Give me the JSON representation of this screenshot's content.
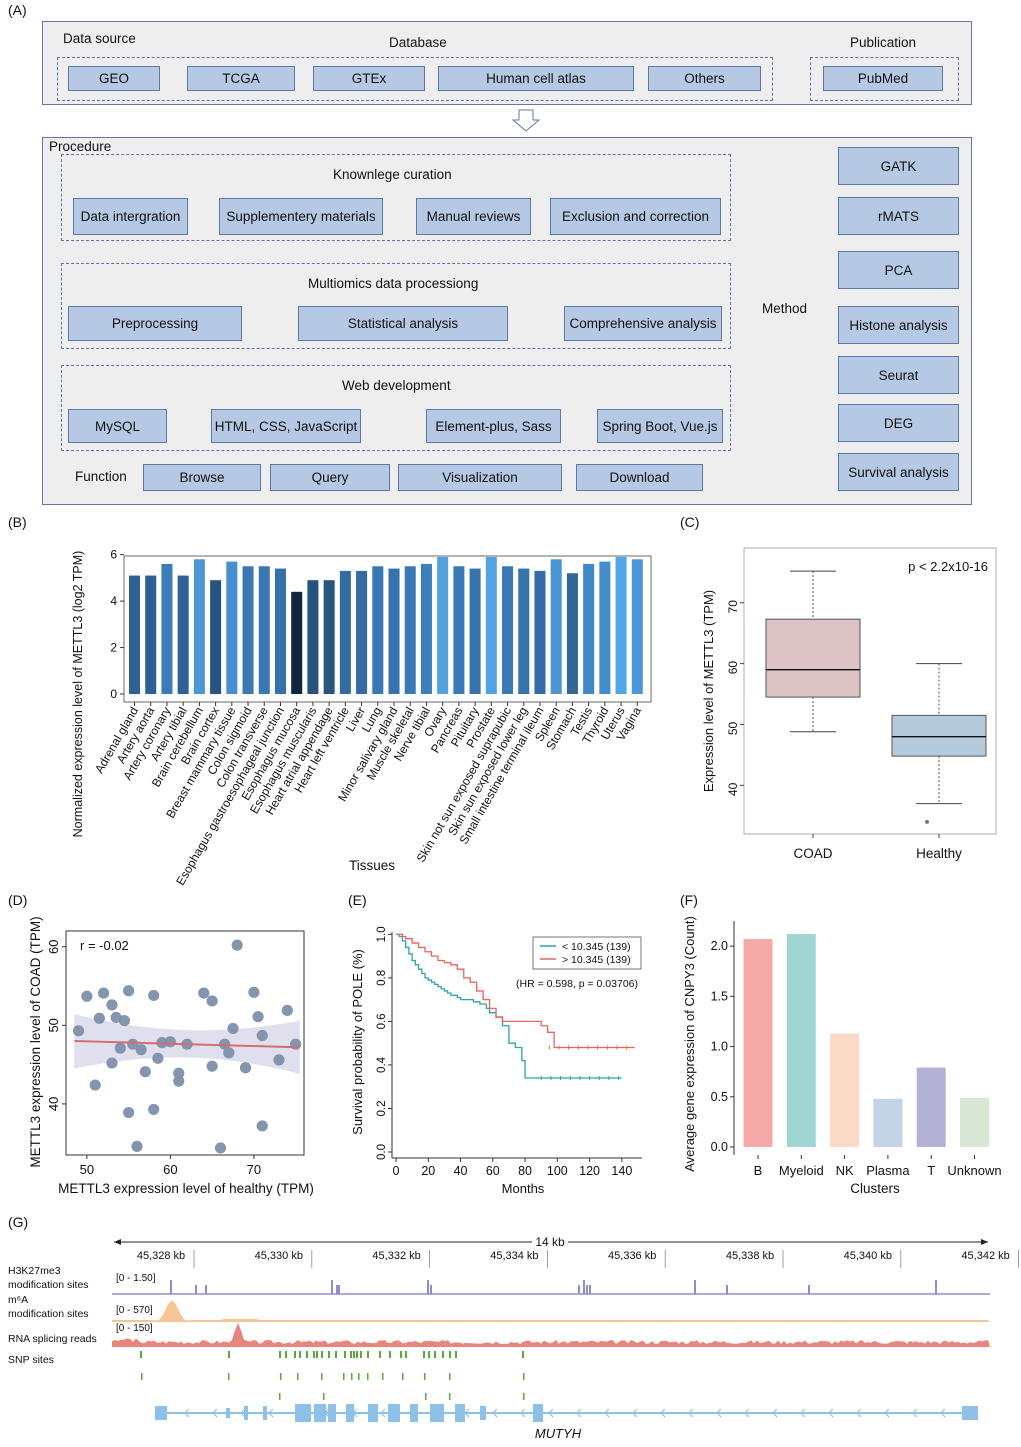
{
  "panel_labels": {
    "A": "(A)",
    "B": "(B)",
    "C": "(C)",
    "D": "(D)",
    "E": "(E)",
    "F": "(F)",
    "G": "(G)"
  },
  "workflow": {
    "data_source_label": "Data source",
    "database_label": "Database",
    "publication_label": "Publication",
    "databases": [
      "GEO",
      "TCGA",
      "GTEx",
      "Human cell atlas",
      "Others"
    ],
    "publications": [
      "PubMed"
    ],
    "procedure_label": "Procedure",
    "curation": {
      "title": "Knownlege curation",
      "steps": [
        "Data intergration",
        "Supplementery materials",
        "Manual reviews",
        "Exclusion and correction"
      ]
    },
    "multiomics": {
      "title": "Multiomics data processiong",
      "steps": [
        "Preprocessing",
        "Statistical analysis",
        "Comprehensive analysis"
      ]
    },
    "web": {
      "title": "Web development",
      "items": [
        "MySQL",
        "HTML, CSS, JavaScript",
        "Element-plus, Sass",
        "Spring Boot, Vue.js"
      ]
    },
    "function_label": "Function",
    "functions": [
      "Browse",
      "Query",
      "Visualization",
      "Download"
    ],
    "method_label": "Method",
    "methods": [
      "GATK",
      "rMATS",
      "PCA",
      "Histone analysis",
      "Seurat",
      "DEG",
      "Survival analysis"
    ]
  },
  "chart_data": [
    {
      "id": "B",
      "type": "bar",
      "ylabel": "Normalized expression level of METTL3 (log2 TPM)",
      "xlabel": "Tissues",
      "ylim": [
        0,
        6.2
      ],
      "yticks": [
        0,
        2,
        4,
        6
      ],
      "categories": [
        "Adrenal gland",
        "Artery aorta",
        "Artery coronary",
        "Artery tibial",
        "Brain cerebellum",
        "Brain cortex",
        "Breast mammary tissue",
        "Colon sigmoid",
        "Colon transverse",
        "Esophagus gastroesophageal junction",
        "Esophagus mucosa",
        "Esophagus muscularis",
        "Heart atrial appendage",
        "Heart left ventricle",
        "Liver",
        "Lung",
        "Minor salivary gland",
        "Muscle skeletal",
        "Nerve tibial",
        "Ovary",
        "Pancreas",
        "Pituitary",
        "Prostate",
        "Skin not sun exposed suprapubic",
        "Skin sun exposed lower leg",
        "Small intestine terminal ileum",
        "Spleen",
        "Stomach",
        "Testis",
        "Thyroid",
        "Uterus",
        "Vagina"
      ],
      "values": [
        5.1,
        5.1,
        5.6,
        5.1,
        5.8,
        4.9,
        5.7,
        5.5,
        5.5,
        5.4,
        4.4,
        4.9,
        4.9,
        5.3,
        5.3,
        5.5,
        5.4,
        5.5,
        5.6,
        5.9,
        5.5,
        5.4,
        5.9,
        5.5,
        5.4,
        5.3,
        5.8,
        5.2,
        5.6,
        5.7,
        5.9,
        5.8
      ],
      "colors": [
        "#2e6294",
        "#2d6193",
        "#3b7bb9",
        "#2e6294",
        "#4b96d4",
        "#26557f",
        "#4690cf",
        "#3a77b4",
        "#3a78b5",
        "#3670aa",
        "#11263b",
        "#26537e",
        "#27567f",
        "#336ba3",
        "#346ca4",
        "#3a78b4",
        "#3773ad",
        "#3a79b6",
        "#3d7ebd",
        "#52a2e0",
        "#3b7ab7",
        "#3873ad",
        "#53a3e2",
        "#3a79b6",
        "#3672ab",
        "#346da5",
        "#4a94d3",
        "#316799",
        "#4188c6",
        "#448dcc",
        "#55a6e5",
        "#4c97d6"
      ]
    },
    {
      "id": "C",
      "type": "box",
      "ylabel": "Expression level of METTL3 (TPM)",
      "categories": [
        "COAD",
        "Healthy"
      ],
      "yticks": [
        40,
        50,
        60,
        70
      ],
      "ylim": [
        32,
        79
      ],
      "annotation": "p < 2.2x10-16",
      "boxes": [
        {
          "name": "COAD",
          "min": 48.8,
          "q1": 54.5,
          "median": 59,
          "q3": 67.3,
          "max": 75.2,
          "color": "#dcc3c6"
        },
        {
          "name": "Healthy",
          "min": 37,
          "q1": 44.8,
          "median": 48,
          "q3": 51.5,
          "max": 60,
          "outliers": [
            34
          ],
          "color": "#b5cbdc"
        }
      ]
    },
    {
      "id": "D",
      "type": "scatter",
      "xlabel": "METTL3 expression level of healthy (TPM)",
      "ylabel": "METTL3 expression level of COAD (TPM)",
      "annotation": "r = -0.02",
      "xticks": [
        50,
        60,
        70
      ],
      "yticks": [
        40,
        50,
        60
      ],
      "xlim": [
        47.5,
        76
      ],
      "ylim": [
        33.5,
        62
      ],
      "x": [
        49,
        50,
        51,
        51.5,
        52,
        53,
        53,
        53.5,
        54,
        54.5,
        55,
        55,
        55.5,
        56,
        56.5,
        57,
        58,
        58,
        58.5,
        59,
        60,
        61,
        61,
        62,
        64,
        65,
        65,
        66,
        66.5,
        67,
        67.5,
        68,
        69,
        70,
        70.5,
        71,
        71,
        73,
        74,
        75
      ],
      "y": [
        49.3,
        53.7,
        42.4,
        50.9,
        54.1,
        52.6,
        45.2,
        51.0,
        47.1,
        50.6,
        54.4,
        38.9,
        47.6,
        34.6,
        46.9,
        44.1,
        53.8,
        39.3,
        45.8,
        47.8,
        47.9,
        43.9,
        42.9,
        47.6,
        54.1,
        53.1,
        44.8,
        34.4,
        47.6,
        46.5,
        49.6,
        60.2,
        44.6,
        54.2,
        51.1,
        37.2,
        48.7,
        45.6,
        51.9,
        47.6
      ],
      "fit": {
        "x0": 48.5,
        "y0": 48.0,
        "x1": 75.5,
        "y1": 47.2
      }
    },
    {
      "id": "E",
      "type": "line",
      "ylabel": "Survival probability of POLE (%)",
      "xlabel": "Months",
      "xticks": [
        0,
        20,
        40,
        60,
        80,
        100,
        120,
        140
      ],
      "yticks": [
        0,
        0.2,
        0.4,
        0.6,
        0.8,
        1
      ],
      "ytick_labels": [
        "0.0",
        "0.2",
        "0.4",
        "0.6",
        "0.8",
        "1.0"
      ],
      "xlim": [
        0,
        150
      ],
      "ylim": [
        0,
        1.02
      ],
      "legend": [
        "<    10.345 (139)",
        ">    10.345 (139)"
      ],
      "annotation": "(HR = 0.598, p = 0.03706)",
      "series": [
        {
          "name": "< 10.345 (139)",
          "color": "#2aa6a6",
          "x": [
            0,
            2,
            4,
            6,
            8,
            10,
            12,
            14,
            16,
            18,
            20,
            22,
            24,
            26,
            28,
            30,
            32,
            34,
            36,
            38,
            40,
            44,
            48,
            52,
            56,
            58,
            62,
            66,
            70,
            74,
            78,
            80,
            82,
            86,
            100,
            120,
            140
          ],
          "y": [
            1,
            0.99,
            0.97,
            0.94,
            0.91,
            0.88,
            0.86,
            0.84,
            0.82,
            0.8,
            0.79,
            0.78,
            0.77,
            0.76,
            0.75,
            0.74,
            0.73,
            0.72,
            0.72,
            0.71,
            0.7,
            0.7,
            0.69,
            0.68,
            0.66,
            0.64,
            0.62,
            0.58,
            0.5,
            0.48,
            0.42,
            0.34,
            0.34,
            0.34,
            0.34,
            0.34,
            0.34
          ]
        },
        {
          "name": "> 10.345 (139)",
          "color": "#e8645a",
          "x": [
            0,
            4,
            6,
            10,
            14,
            18,
            22,
            26,
            30,
            34,
            38,
            42,
            46,
            50,
            54,
            58,
            62,
            66,
            70,
            74,
            78,
            82,
            86,
            90,
            94,
            98,
            100,
            110,
            120,
            130,
            140,
            148
          ],
          "y": [
            1,
            0.99,
            0.98,
            0.96,
            0.94,
            0.92,
            0.9,
            0.88,
            0.87,
            0.86,
            0.84,
            0.8,
            0.78,
            0.74,
            0.7,
            0.66,
            0.62,
            0.6,
            0.6,
            0.6,
            0.6,
            0.6,
            0.6,
            0.58,
            0.55,
            0.48,
            0.48,
            0.48,
            0.48,
            0.48,
            0.48,
            0.48
          ]
        }
      ]
    },
    {
      "id": "F",
      "type": "bar",
      "ylabel": "Average gene expression of CNPY3 (Count)",
      "xlabel": "Clusters",
      "categories": [
        "B",
        "Myeloid",
        "NK",
        "Plasma",
        "T",
        "Unknown"
      ],
      "values": [
        2.07,
        2.12,
        1.13,
        0.48,
        0.79,
        0.49
      ],
      "yticks": [
        0,
        0.5,
        1,
        1.5,
        2
      ],
      "ytick_labels": [
        "0.0",
        "0.5",
        "1.0",
        "1.5",
        "2.0"
      ],
      "ylim": [
        0,
        2.25
      ],
      "colors": [
        "#f3a9a6",
        "#9fd6d4",
        "#fbd9c6",
        "#c3d4e6",
        "#b3b1d6",
        "#d8e7d4"
      ]
    }
  ],
  "tracks": {
    "scale_label": "14 kb",
    "positions": [
      "45,328 kb",
      "45,330 kb",
      "45,332 kb",
      "45,334 kb",
      "45,336 kb",
      "45,338 kb",
      "45,340 kb",
      "45,342 kb"
    ],
    "rows": [
      {
        "name": "H3K27me3\nmodification sites",
        "range": "[0 - 1.50]",
        "color": "#8e8fc8"
      },
      {
        "name": "m⁶A\nmodification sites",
        "range": "[0 - 570]",
        "color": "#f6c596"
      },
      {
        "name": "RNA splicing reads",
        "range": "[0 - 150]",
        "color": "#e8857c"
      },
      {
        "name": "SNP sites",
        "range": "",
        "color": "#5aa83e"
      }
    ],
    "gene": "MUTYH",
    "gene_color": "#8ec1ea"
  }
}
